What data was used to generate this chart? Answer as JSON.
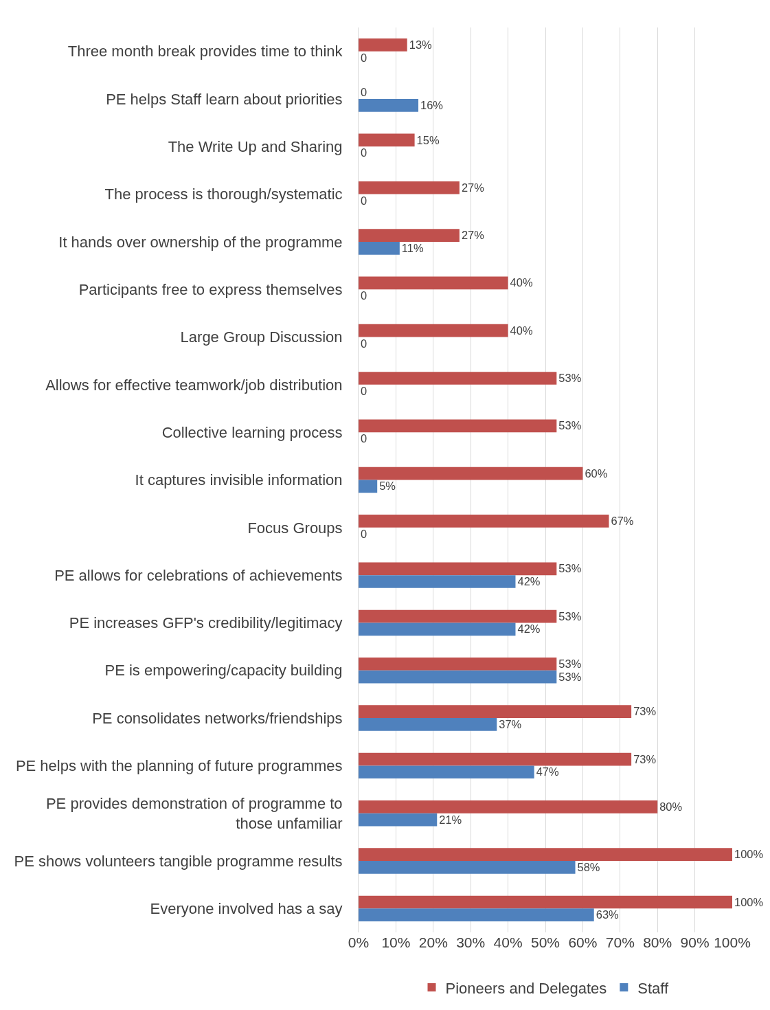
{
  "chart_data": {
    "type": "bar",
    "orientation": "horizontal",
    "categories": [
      "Three month break provides time to think",
      "PE helps Staff learn about priorities",
      "The Write Up and Sharing",
      "The process is thorough/systematic",
      "It hands over ownership of the programme",
      "Participants free to express themselves",
      "Large Group Discussion",
      "Allows for effective teamwork/job distribution",
      "Collective learning process",
      "It captures invisible information",
      "Focus Groups",
      "PE allows for celebrations of achievements",
      "PE increases GFP's credibility/legitimacy",
      "PE is empowering/capacity building",
      "PE consolidates networks/friendships",
      "PE helps with the planning of future programmes",
      "PE provides demonstration of programme to those unfamiliar",
      "PE shows volunteers tangible programme results",
      "Everyone involved has a say"
    ],
    "series": [
      {
        "name": "Pioneers and Delegates",
        "color": "#c0504d",
        "values": [
          13,
          0,
          15,
          27,
          27,
          40,
          40,
          53,
          53,
          60,
          67,
          53,
          53,
          53,
          73,
          73,
          80,
          100,
          100
        ],
        "value_labels": [
          "13%",
          "0",
          "15%",
          "27%",
          "27%",
          "40%",
          "40%",
          "53%",
          "53%",
          "60%",
          "67%",
          "53%",
          "53%",
          "53%",
          "73%",
          "73%",
          "80%",
          "100%",
          "100%"
        ]
      },
      {
        "name": "Staff",
        "color": "#4f81bd",
        "values": [
          0,
          16,
          0,
          0,
          11,
          0,
          0,
          0,
          0,
          5,
          0,
          42,
          42,
          53,
          37,
          47,
          21,
          58,
          63
        ],
        "value_labels": [
          "0",
          "16%",
          "0",
          "0",
          "11%",
          "0",
          "0",
          "0",
          "0",
          "5%",
          "0",
          "42%",
          "42%",
          "53%",
          "37%",
          "47%",
          "21%",
          "58%",
          "63%"
        ]
      }
    ],
    "xlim": [
      0,
      100
    ],
    "xticks": [
      {
        "value": 0,
        "label": "0%"
      },
      {
        "value": 10,
        "label": "10%"
      },
      {
        "value": 20,
        "label": "20%"
      },
      {
        "value": 30,
        "label": "30%"
      },
      {
        "value": 40,
        "label": "40%"
      },
      {
        "value": 50,
        "label": "50%"
      },
      {
        "value": 60,
        "label": "60%"
      },
      {
        "value": 70,
        "label": "70%"
      },
      {
        "value": 80,
        "label": "80%"
      },
      {
        "value": 90,
        "label": "90%"
      },
      {
        "value": 100,
        "label": "100%"
      }
    ],
    "grid": "x",
    "legend": "bottom"
  }
}
